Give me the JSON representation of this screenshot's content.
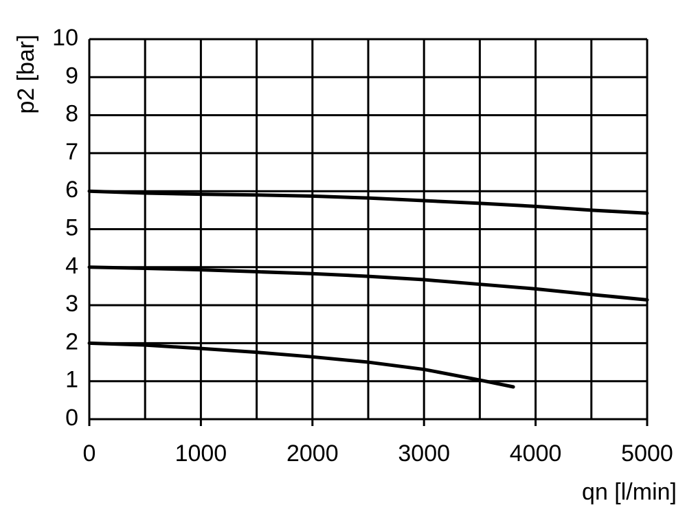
{
  "chart_data": {
    "type": "line",
    "x_label": "qn [l/min]",
    "y_label": "p2 [bar]",
    "xlim": [
      0,
      5000
    ],
    "xticks": [
      0,
      1000,
      2000,
      3000,
      4000,
      5000
    ],
    "x_minor_grid": [
      500,
      1500,
      2500,
      3500,
      4500
    ],
    "ylim": [
      0,
      10
    ],
    "yticks": [
      0,
      1,
      2,
      3,
      4,
      5,
      6,
      7,
      8,
      9,
      10
    ],
    "grid": true,
    "series": [
      {
        "color": "#000000",
        "x": [
          0,
          500,
          1000,
          1500,
          2000,
          2500,
          3000,
          3500,
          4000,
          4500,
          5000
        ],
        "values": [
          6.0,
          5.95,
          5.92,
          5.9,
          5.87,
          5.82,
          5.75,
          5.68,
          5.6,
          5.5,
          5.42
        ]
      },
      {
        "color": "#000000",
        "x": [
          0,
          500,
          1000,
          1500,
          2000,
          2500,
          3000,
          3500,
          4000,
          4500,
          5000
        ],
        "values": [
          4.0,
          3.97,
          3.93,
          3.88,
          3.83,
          3.76,
          3.67,
          3.55,
          3.43,
          3.28,
          3.14
        ]
      },
      {
        "color": "#000000",
        "x": [
          0,
          500,
          1000,
          1500,
          2000,
          2500,
          3000,
          3500,
          3800
        ],
        "values": [
          2.0,
          1.95,
          1.86,
          1.76,
          1.64,
          1.5,
          1.31,
          1.03,
          0.85
        ]
      }
    ]
  }
}
